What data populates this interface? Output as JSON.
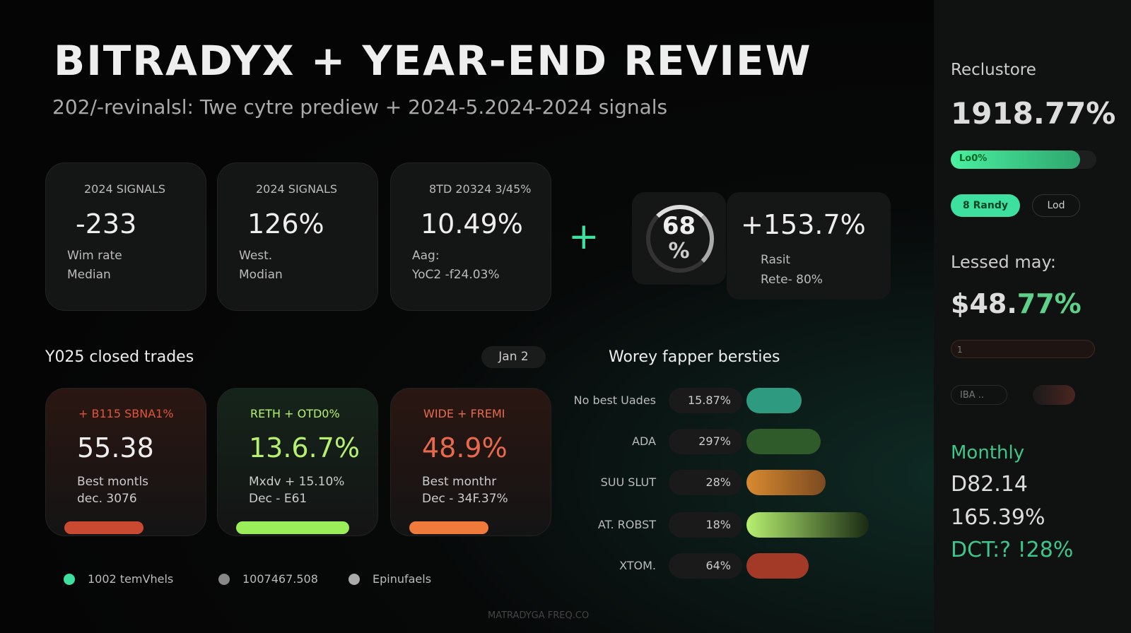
{
  "header": {
    "title": "BITRADYX + YEAR-END REVIEW",
    "subtitle": "202/-revinalsl: Twe cytre prediew + 2024-5.2024-2024 signals"
  },
  "top_cards": [
    {
      "tag": "2024 SIGNALS",
      "value": "-233",
      "line1": "Wim rate",
      "line2": "Median"
    },
    {
      "tag": "2024 SIGNALS",
      "value": "126%",
      "line1": "West.",
      "line2": "Modian"
    },
    {
      "tag": "8TD 20324 3/45%",
      "value": "10.49%",
      "line1": "Aag:",
      "line2": "YoC2 -f24.03%"
    }
  ],
  "gauge": {
    "value": "68",
    "unit": "%"
  },
  "stat": {
    "value": "+153.7%",
    "line1": "Rasit",
    "line2": "Rete- 80%"
  },
  "trades": {
    "title": "Y025 closed trades",
    "chip": "Jan 2",
    "cards": [
      {
        "tag": "+ B115 SBNA1%",
        "value": "55.38",
        "line1": "Best montls",
        "line2": "dec. 3076"
      },
      {
        "tag": "RETH + OTD0%",
        "value": "13.6.7%",
        "line1": "Mxdv + 15.10%",
        "line2": "Dec - E61"
      },
      {
        "tag": "WIDE + FREMI",
        "value": "48.9%",
        "line1": "Best monthr",
        "line2": "Dec - 34F.37%"
      }
    ]
  },
  "bars": {
    "title": "Worey fapper bersties",
    "rows": [
      {
        "label": "No best Uades",
        "value": "15.87%"
      },
      {
        "label": "ADA",
        "value": "297%"
      },
      {
        "label": "SUU SLUT",
        "value": "28%"
      },
      {
        "label": "AT. ROBST",
        "value": "18%"
      },
      {
        "label": "XTOM.",
        "value": "64%"
      }
    ]
  },
  "footer": {
    "items": [
      "1002 temVhels",
      "1007467.508",
      "Epinufaels"
    ],
    "watermark": "MATRADYGA FREQ.CO"
  },
  "sidebar": {
    "heading": "Reclustore",
    "value": "1918.77%",
    "progress_label": "Lo0%",
    "buttons": [
      "8 Randy",
      "Lod"
    ],
    "label2": "Lessed may:",
    "value2_main": "$48.",
    "value2_accent": "77%",
    "slider_label": "1",
    "toggle_label": "IBA ..",
    "monthly": "Monthly",
    "lines": [
      "D82.14",
      "165.39%"
    ],
    "accent_line": "DCT:? !28%"
  }
}
